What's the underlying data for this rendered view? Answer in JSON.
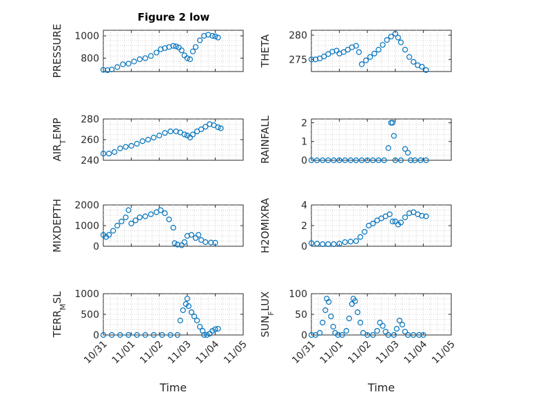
{
  "chart_data": [
    {
      "type": "scatter",
      "title": "Figure 2 low",
      "ylabel": "PRESSURE",
      "xlabel": "",
      "xlim": [
        0,
        5
      ],
      "ylim": [
        680,
        1050
      ],
      "yticks": [
        800,
        1000
      ],
      "ytick_labels": [
        "800",
        "1000"
      ],
      "xticks": [
        0,
        1,
        2,
        3,
        4,
        5
      ],
      "xtick_labels": [
        "",
        "",
        "",
        "",
        "",
        ""
      ],
      "grid": true,
      "points": [
        [
          0.0,
          695
        ],
        [
          0.15,
          692
        ],
        [
          0.3,
          698
        ],
        [
          0.5,
          720
        ],
        [
          0.7,
          745
        ],
        [
          0.9,
          750
        ],
        [
          1.1,
          770
        ],
        [
          1.3,
          790
        ],
        [
          1.5,
          800
        ],
        [
          1.7,
          820
        ],
        [
          1.9,
          850
        ],
        [
          2.05,
          880
        ],
        [
          2.2,
          890
        ],
        [
          2.35,
          900
        ],
        [
          2.5,
          910
        ],
        [
          2.6,
          905
        ],
        [
          2.7,
          895
        ],
        [
          2.8,
          870
        ],
        [
          2.9,
          825
        ],
        [
          3.0,
          800
        ],
        [
          3.1,
          790
        ],
        [
          3.2,
          860
        ],
        [
          3.3,
          900
        ],
        [
          3.45,
          960
        ],
        [
          3.6,
          1000
        ],
        [
          3.75,
          1010
        ],
        [
          3.9,
          1000
        ],
        [
          4.0,
          995
        ],
        [
          4.1,
          985
        ]
      ]
    },
    {
      "type": "scatter",
      "ylabel": "THETA",
      "xlabel": "",
      "xlim": [
        0,
        5
      ],
      "ylim": [
        272.5,
        281
      ],
      "yticks": [
        275,
        280
      ],
      "ytick_labels": [
        "275",
        "280"
      ],
      "xticks": [
        0,
        1,
        2,
        3,
        4,
        5
      ],
      "xtick_labels": [
        "",
        "",
        "",
        "",
        "",
        ""
      ],
      "grid": true,
      "points": [
        [
          0.0,
          275
        ],
        [
          0.15,
          275
        ],
        [
          0.3,
          275.2
        ],
        [
          0.45,
          275.6
        ],
        [
          0.6,
          276.1
        ],
        [
          0.75,
          276.6
        ],
        [
          0.9,
          276.8
        ],
        [
          1.0,
          276.2
        ],
        [
          1.15,
          276.5
        ],
        [
          1.3,
          277
        ],
        [
          1.45,
          277.5
        ],
        [
          1.6,
          277.8
        ],
        [
          1.7,
          276.5
        ],
        [
          1.8,
          274
        ],
        [
          1.95,
          274.8
        ],
        [
          2.1,
          275.5
        ],
        [
          2.25,
          276.2
        ],
        [
          2.4,
          277
        ],
        [
          2.55,
          278
        ],
        [
          2.7,
          279
        ],
        [
          2.85,
          279.7
        ],
        [
          3.0,
          280.3
        ],
        [
          3.1,
          279.5
        ],
        [
          3.2,
          278.5
        ],
        [
          3.35,
          277
        ],
        [
          3.5,
          275.5
        ],
        [
          3.65,
          274.5
        ],
        [
          3.8,
          273.8
        ],
        [
          3.95,
          273.5
        ],
        [
          4.1,
          272.8
        ]
      ]
    },
    {
      "type": "scatter",
      "ylabel": "AIR_TEMP",
      "xlabel": "",
      "xlim": [
        0,
        5
      ],
      "ylim": [
        240,
        280
      ],
      "yticks": [
        240,
        260,
        280
      ],
      "ytick_labels": [
        "240",
        "260",
        "280"
      ],
      "xticks": [
        0,
        1,
        2,
        3,
        4,
        5
      ],
      "xtick_labels": [
        "",
        "",
        "",
        "",
        "",
        ""
      ],
      "grid": true,
      "points": [
        [
          0.0,
          246.5
        ],
        [
          0.2,
          246.5
        ],
        [
          0.4,
          248
        ],
        [
          0.6,
          251.5
        ],
        [
          0.8,
          253
        ],
        [
          1.0,
          254
        ],
        [
          1.2,
          256
        ],
        [
          1.4,
          258.5
        ],
        [
          1.6,
          260
        ],
        [
          1.8,
          262
        ],
        [
          2.0,
          264
        ],
        [
          2.2,
          266.5
        ],
        [
          2.4,
          268
        ],
        [
          2.6,
          268
        ],
        [
          2.75,
          267
        ],
        [
          2.9,
          265
        ],
        [
          3.0,
          264
        ],
        [
          3.1,
          262
        ],
        [
          3.2,
          265
        ],
        [
          3.35,
          268
        ],
        [
          3.5,
          270
        ],
        [
          3.65,
          272.5
        ],
        [
          3.8,
          275
        ],
        [
          3.95,
          274
        ],
        [
          4.1,
          272
        ],
        [
          4.2,
          271
        ]
      ]
    },
    {
      "type": "scatter",
      "ylabel": "RAINFALL",
      "xlabel": "",
      "xlim": [
        0,
        5
      ],
      "ylim": [
        0,
        2.2
      ],
      "yticks": [
        0,
        1,
        2
      ],
      "ytick_labels": [
        "0",
        "1",
        "2"
      ],
      "xticks": [
        0,
        1,
        2,
        3,
        4,
        5
      ],
      "xtick_labels": [
        "",
        "",
        "",
        "",
        "",
        ""
      ],
      "grid": true,
      "points": [
        [
          0.0,
          0
        ],
        [
          0.2,
          0
        ],
        [
          0.4,
          0
        ],
        [
          0.6,
          0
        ],
        [
          0.8,
          0
        ],
        [
          1.0,
          0
        ],
        [
          1.2,
          0
        ],
        [
          1.4,
          0
        ],
        [
          1.6,
          0
        ],
        [
          1.8,
          0
        ],
        [
          2.0,
          0
        ],
        [
          2.2,
          0
        ],
        [
          2.4,
          0
        ],
        [
          2.6,
          0
        ],
        [
          2.75,
          0.65
        ],
        [
          2.85,
          2.0
        ],
        [
          2.9,
          2.0
        ],
        [
          2.95,
          1.3
        ],
        [
          3.0,
          0
        ],
        [
          3.2,
          0
        ],
        [
          3.35,
          0.6
        ],
        [
          3.45,
          0.4
        ],
        [
          3.55,
          0
        ],
        [
          3.7,
          0
        ],
        [
          3.9,
          0
        ],
        [
          4.1,
          0
        ]
      ]
    },
    {
      "type": "scatter",
      "ylabel": "MIXDEPTH",
      "xlabel": "",
      "xlim": [
        0,
        5
      ],
      "ylim": [
        0,
        2000
      ],
      "yticks": [
        0,
        1000,
        2000
      ],
      "ytick_labels": [
        "0",
        "1000",
        "2000"
      ],
      "xticks": [
        0,
        1,
        2,
        3,
        4,
        5
      ],
      "xtick_labels": [
        "",
        "",
        "",
        "",
        "",
        ""
      ],
      "grid": true,
      "points": [
        [
          0.0,
          550
        ],
        [
          0.1,
          450
        ],
        [
          0.2,
          550
        ],
        [
          0.35,
          750
        ],
        [
          0.5,
          1000
        ],
        [
          0.65,
          1200
        ],
        [
          0.8,
          1400
        ],
        [
          0.9,
          1750
        ],
        [
          1.0,
          1100
        ],
        [
          1.15,
          1250
        ],
        [
          1.3,
          1400
        ],
        [
          1.5,
          1450
        ],
        [
          1.7,
          1550
        ],
        [
          1.9,
          1650
        ],
        [
          2.05,
          1750
        ],
        [
          2.2,
          1600
        ],
        [
          2.35,
          1300
        ],
        [
          2.5,
          900
        ],
        [
          2.55,
          150
        ],
        [
          2.65,
          80
        ],
        [
          2.8,
          50
        ],
        [
          2.9,
          200
        ],
        [
          3.0,
          500
        ],
        [
          3.15,
          550
        ],
        [
          3.3,
          400
        ],
        [
          3.4,
          550
        ],
        [
          3.5,
          300
        ],
        [
          3.65,
          200
        ],
        [
          3.85,
          180
        ],
        [
          4.0,
          170
        ]
      ]
    },
    {
      "type": "scatter",
      "ylabel": "H2OMIXRA",
      "xlabel": "",
      "xlim": [
        0,
        5
      ],
      "ylim": [
        0,
        4
      ],
      "yticks": [
        0,
        2,
        4
      ],
      "ytick_labels": [
        "0",
        "2",
        "4"
      ],
      "xticks": [
        0,
        1,
        2,
        3,
        4,
        5
      ],
      "xtick_labels": [
        "",
        "",
        "",
        "",
        "",
        ""
      ],
      "grid": true,
      "points": [
        [
          0.0,
          0.3
        ],
        [
          0.2,
          0.25
        ],
        [
          0.4,
          0.2
        ],
        [
          0.6,
          0.2
        ],
        [
          0.8,
          0.2
        ],
        [
          1.0,
          0.25
        ],
        [
          1.2,
          0.4
        ],
        [
          1.4,
          0.45
        ],
        [
          1.6,
          0.5
        ],
        [
          1.75,
          0.9
        ],
        [
          1.9,
          1.4
        ],
        [
          2.05,
          2.0
        ],
        [
          2.2,
          2.2
        ],
        [
          2.35,
          2.5
        ],
        [
          2.5,
          2.7
        ],
        [
          2.65,
          2.9
        ],
        [
          2.8,
          3.1
        ],
        [
          2.9,
          2.4
        ],
        [
          3.0,
          2.4
        ],
        [
          3.1,
          2.1
        ],
        [
          3.2,
          2.3
        ],
        [
          3.35,
          2.8
        ],
        [
          3.5,
          3.2
        ],
        [
          3.65,
          3.3
        ],
        [
          3.8,
          3.1
        ],
        [
          3.95,
          2.95
        ],
        [
          4.1,
          2.9
        ]
      ]
    },
    {
      "type": "scatter",
      "ylabel": "TERR_MSL",
      "xlabel": "Time",
      "xlim": [
        0,
        5
      ],
      "ylim": [
        0,
        1000
      ],
      "yticks": [
        0,
        500,
        1000
      ],
      "ytick_labels": [
        "0",
        "500",
        "1000"
      ],
      "xticks": [
        0,
        1,
        2,
        3,
        4,
        5
      ],
      "xtick_labels": [
        "10/31",
        "11/01",
        "11/02",
        "11/03",
        "11/04",
        "11/05"
      ],
      "grid": true,
      "points": [
        [
          0.0,
          0
        ],
        [
          0.3,
          0
        ],
        [
          0.6,
          0
        ],
        [
          0.9,
          0
        ],
        [
          1.2,
          0
        ],
        [
          1.5,
          0
        ],
        [
          1.8,
          0
        ],
        [
          2.1,
          0
        ],
        [
          2.4,
          0
        ],
        [
          2.65,
          0
        ],
        [
          2.75,
          350
        ],
        [
          2.85,
          600
        ],
        [
          2.95,
          750
        ],
        [
          3.0,
          880
        ],
        [
          3.05,
          700
        ],
        [
          3.15,
          550
        ],
        [
          3.25,
          450
        ],
        [
          3.35,
          350
        ],
        [
          3.45,
          200
        ],
        [
          3.55,
          100
        ],
        [
          3.6,
          0
        ],
        [
          3.7,
          0
        ],
        [
          3.8,
          30
        ],
        [
          3.9,
          100
        ],
        [
          4.0,
          140
        ],
        [
          4.1,
          150
        ]
      ]
    },
    {
      "type": "scatter",
      "ylabel": "SUN_FLUX",
      "xlabel": "Time",
      "xlim": [
        0,
        5
      ],
      "ylim": [
        0,
        100
      ],
      "yticks": [
        0,
        50,
        100
      ],
      "ytick_labels": [
        "0",
        "50",
        "100"
      ],
      "xticks": [
        0,
        1,
        2,
        3,
        4,
        5
      ],
      "xtick_labels": [
        "10/31",
        "11/01",
        "11/02",
        "11/03",
        "11/04",
        "11/05"
      ],
      "grid": true,
      "points": [
        [
          0.0,
          0
        ],
        [
          0.15,
          0
        ],
        [
          0.3,
          5
        ],
        [
          0.4,
          30
        ],
        [
          0.5,
          60
        ],
        [
          0.55,
          88
        ],
        [
          0.62,
          80
        ],
        [
          0.7,
          45
        ],
        [
          0.78,
          20
        ],
        [
          0.85,
          5
        ],
        [
          0.95,
          0
        ],
        [
          1.1,
          0
        ],
        [
          1.25,
          10
        ],
        [
          1.35,
          40
        ],
        [
          1.45,
          75
        ],
        [
          1.5,
          88
        ],
        [
          1.56,
          82
        ],
        [
          1.65,
          55
        ],
        [
          1.75,
          30
        ],
        [
          1.85,
          5
        ],
        [
          2.0,
          0
        ],
        [
          2.2,
          0
        ],
        [
          2.35,
          10
        ],
        [
          2.45,
          30
        ],
        [
          2.55,
          22
        ],
        [
          2.65,
          8
        ],
        [
          2.75,
          0
        ],
        [
          2.95,
          0
        ],
        [
          3.05,
          15
        ],
        [
          3.15,
          35
        ],
        [
          3.25,
          25
        ],
        [
          3.35,
          8
        ],
        [
          3.45,
          0
        ],
        [
          3.65,
          0
        ],
        [
          3.85,
          0
        ],
        [
          4.0,
          0
        ]
      ]
    }
  ]
}
